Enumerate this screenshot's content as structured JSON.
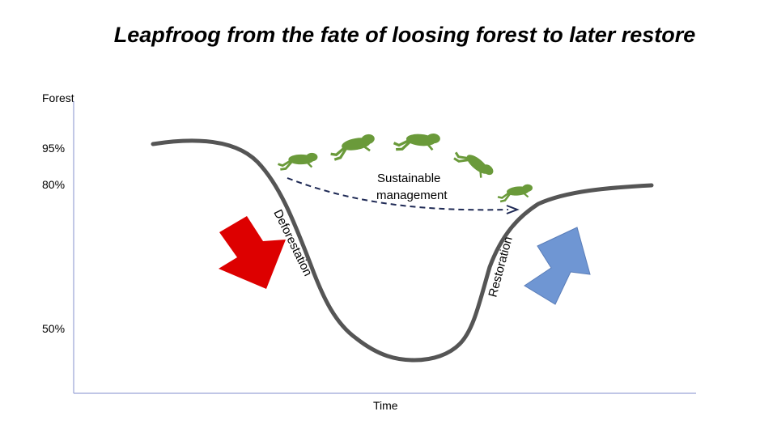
{
  "title": "Leapfroog from the fate of loosing forest to later restore",
  "axes": {
    "y_label": "Forest",
    "x_label": "Time",
    "y_ticks": [
      "95%",
      "80%",
      "50%"
    ]
  },
  "curve_labels": {
    "deforestation": "Deforestation",
    "restoration": "Restoration",
    "sustainable_line1": "Sustainable",
    "sustainable_line2": "management"
  },
  "colors": {
    "curve": "#555555",
    "axis": "#9aa3d6",
    "deforestation_arrow": "#dd0000",
    "restoration_arrow": "#6f96d3",
    "dashed_arrow": "#1f2a55",
    "frog": "#6a9a3a"
  },
  "icons": [
    "frog-icon"
  ]
}
